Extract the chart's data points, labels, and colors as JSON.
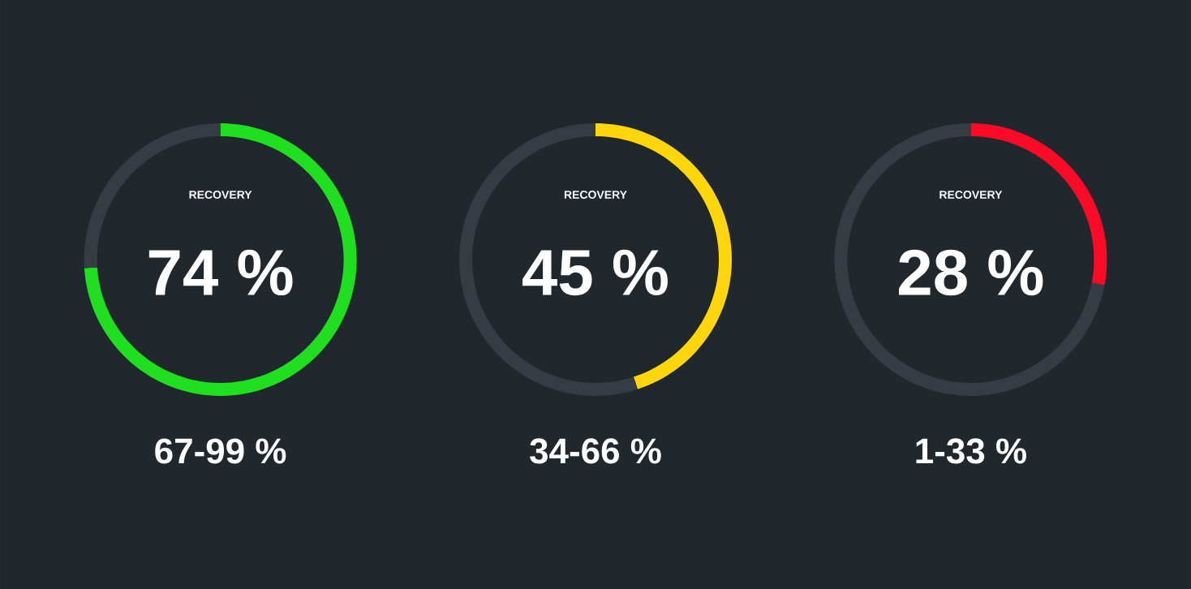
{
  "chart_data": [
    {
      "type": "donut",
      "title": "RECOVERY",
      "categories": [
        null,
        null
      ],
      "values": [
        74,
        26
      ],
      "colors": [
        "#1fe01f",
        "#363c44"
      ],
      "annotations": [
        "74 %",
        "67-99 %"
      ]
    },
    {
      "type": "donut",
      "title": "RECOVERY",
      "categories": [
        null,
        null
      ],
      "values": [
        45,
        55
      ],
      "colors": [
        "#ffd60a",
        "#363c44"
      ],
      "annotations": [
        "45 %",
        "34-66 %"
      ]
    },
    {
      "type": "donut",
      "title": "RECOVERY",
      "categories": [
        null,
        null
      ],
      "values": [
        28,
        72
      ],
      "colors": [
        "#ff0a26",
        "#363c44"
      ],
      "annotations": [
        "28 %",
        "1-33 %"
      ]
    }
  ]
}
